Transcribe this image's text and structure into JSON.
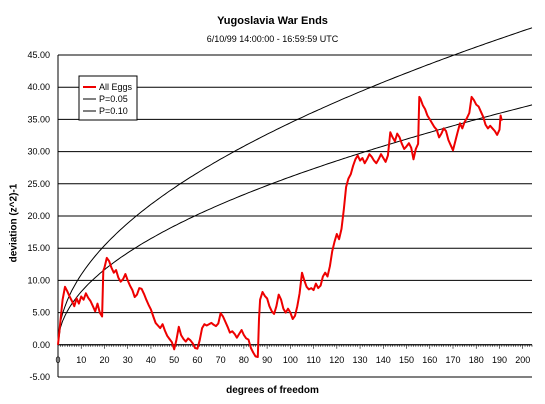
{
  "chart_data": {
    "type": "line",
    "title": "Yugoslavia War Ends",
    "subtitle": "6/10/99 14:00:00 - 16:59:59 UTC",
    "xlabel": "degrees of freedom",
    "ylabel": "deviation (z^2)-1",
    "xlim": [
      0,
      204
    ],
    "ylim": [
      -5,
      45
    ],
    "x_ticks": [
      "0",
      "10",
      "20",
      "30",
      "40",
      "50",
      "60",
      "70",
      "80",
      "90",
      "100",
      "110",
      "120",
      "130",
      "140",
      "150",
      "160",
      "170",
      "180",
      "190",
      "200"
    ],
    "y_ticks": [
      "-5.00",
      "0.00",
      "5.00",
      "10.00",
      "15.00",
      "20.00",
      "25.00",
      "30.00",
      "35.00",
      "40.00",
      "45.00"
    ],
    "grid": "horizontal",
    "legend_position": "top-left",
    "series": [
      {
        "name": "All Eggs",
        "color": "#ee0000",
        "points": [
          [
            0,
            0.0
          ],
          [
            1,
            3.5
          ],
          [
            2,
            7.0
          ],
          [
            3,
            9.0
          ],
          [
            4,
            8.3
          ],
          [
            5,
            7.5
          ],
          [
            6,
            6.8
          ],
          [
            7,
            6.0
          ],
          [
            8,
            7.2
          ],
          [
            9,
            6.4
          ],
          [
            10,
            7.5
          ],
          [
            11,
            7.0
          ],
          [
            12,
            8.0
          ],
          [
            13,
            7.3
          ],
          [
            14,
            6.8
          ],
          [
            15,
            6.0
          ],
          [
            16,
            5.2
          ],
          [
            17,
            6.4
          ],
          [
            18,
            5.0
          ],
          [
            19,
            4.4
          ],
          [
            19.5,
            11.5
          ],
          [
            20,
            12.0
          ],
          [
            21,
            13.5
          ],
          [
            22,
            13.0
          ],
          [
            23,
            12.0
          ],
          [
            24,
            11.2
          ],
          [
            25,
            11.6
          ],
          [
            26,
            10.4
          ],
          [
            27,
            9.8
          ],
          [
            28,
            10.2
          ],
          [
            29,
            11.0
          ],
          [
            30,
            10.0
          ],
          [
            31,
            9.2
          ],
          [
            32,
            8.5
          ],
          [
            33,
            7.4
          ],
          [
            34,
            7.8
          ],
          [
            35,
            8.8
          ],
          [
            36,
            8.7
          ],
          [
            37,
            7.9
          ],
          [
            38,
            7.0
          ],
          [
            39,
            6.2
          ],
          [
            40,
            5.5
          ],
          [
            41,
            4.4
          ],
          [
            42,
            3.4
          ],
          [
            43,
            3.0
          ],
          [
            44,
            2.6
          ],
          [
            45,
            3.2
          ],
          [
            46,
            2.2
          ],
          [
            47,
            1.4
          ],
          [
            48,
            0.9
          ],
          [
            49,
            0.4
          ],
          [
            50,
            -0.7
          ],
          [
            51,
            0.8
          ],
          [
            52,
            2.8
          ],
          [
            53,
            1.5
          ],
          [
            54,
            0.9
          ],
          [
            55,
            0.5
          ],
          [
            56,
            1.0
          ],
          [
            57,
            0.7
          ],
          [
            58,
            0.2
          ],
          [
            59,
            -0.5
          ],
          [
            60,
            -0.6
          ],
          [
            61,
            0.7
          ],
          [
            62,
            2.6
          ],
          [
            63,
            3.2
          ],
          [
            64,
            3.0
          ],
          [
            65,
            3.2
          ],
          [
            66,
            3.4
          ],
          [
            67,
            3.1
          ],
          [
            68,
            2.9
          ],
          [
            69,
            3.3
          ],
          [
            70,
            4.9
          ],
          [
            71,
            4.4
          ],
          [
            72,
            3.6
          ],
          [
            73,
            2.8
          ],
          [
            74,
            1.9
          ],
          [
            75,
            2.1
          ],
          [
            76,
            1.7
          ],
          [
            77,
            1.1
          ],
          [
            78,
            1.7
          ],
          [
            79,
            2.3
          ],
          [
            80,
            1.5
          ],
          [
            81,
            1.0
          ],
          [
            82,
            0.8
          ],
          [
            83,
            -0.5
          ],
          [
            84,
            -1.2
          ],
          [
            85,
            -1.8
          ],
          [
            86,
            -1.9
          ],
          [
            86.5,
            4.0
          ],
          [
            87,
            7.0
          ],
          [
            88,
            8.2
          ],
          [
            89,
            7.6
          ],
          [
            90,
            7.2
          ],
          [
            91,
            6.0
          ],
          [
            92,
            5.2
          ],
          [
            93,
            4.8
          ],
          [
            94,
            6.0
          ],
          [
            95,
            7.8
          ],
          [
            96,
            7.0
          ],
          [
            97,
            5.6
          ],
          [
            98,
            5.0
          ],
          [
            99,
            5.6
          ],
          [
            100,
            5.0
          ],
          [
            101,
            4.0
          ],
          [
            102,
            4.5
          ],
          [
            103,
            6.0
          ],
          [
            104,
            8.0
          ],
          [
            105,
            11.2
          ],
          [
            106,
            10.0
          ],
          [
            107,
            9.0
          ],
          [
            108,
            8.6
          ],
          [
            109,
            8.8
          ],
          [
            110,
            8.5
          ],
          [
            111,
            9.5
          ],
          [
            112,
            8.8
          ],
          [
            113,
            9.2
          ],
          [
            114,
            10.6
          ],
          [
            115,
            11.2
          ],
          [
            116,
            10.6
          ],
          [
            117,
            12.2
          ],
          [
            118,
            14.5
          ],
          [
            119,
            16.0
          ],
          [
            120,
            17.2
          ],
          [
            121,
            16.4
          ],
          [
            122,
            18.0
          ],
          [
            123,
            21.0
          ],
          [
            124,
            24.5
          ],
          [
            125,
            25.8
          ],
          [
            126,
            26.5
          ],
          [
            127,
            27.8
          ],
          [
            128,
            28.8
          ],
          [
            129,
            29.4
          ],
          [
            130,
            28.6
          ],
          [
            131,
            29.0
          ],
          [
            132,
            28.2
          ],
          [
            133,
            28.8
          ],
          [
            134,
            29.6
          ],
          [
            135,
            29.2
          ],
          [
            136,
            28.6
          ],
          [
            137,
            28.2
          ],
          [
            138,
            28.8
          ],
          [
            139,
            29.6
          ],
          [
            140,
            29.0
          ],
          [
            141,
            28.4
          ],
          [
            142,
            29.4
          ],
          [
            143,
            33.0
          ],
          [
            144,
            32.2
          ],
          [
            145,
            31.6
          ],
          [
            146,
            32.8
          ],
          [
            147,
            32.2
          ],
          [
            148,
            31.2
          ],
          [
            149,
            30.4
          ],
          [
            150,
            30.8
          ],
          [
            151,
            31.3
          ],
          [
            152,
            30.6
          ],
          [
            153,
            28.8
          ],
          [
            154,
            30.4
          ],
          [
            155,
            31.2
          ],
          [
            155.5,
            38.5
          ],
          [
            156,
            38.2
          ],
          [
            157,
            37.2
          ],
          [
            158,
            36.6
          ],
          [
            159,
            35.6
          ],
          [
            160,
            35.0
          ],
          [
            161,
            34.4
          ],
          [
            162,
            33.8
          ],
          [
            163,
            33.4
          ],
          [
            164,
            32.2
          ],
          [
            165,
            32.8
          ],
          [
            166,
            33.6
          ],
          [
            167,
            33.2
          ],
          [
            168,
            31.8
          ],
          [
            169,
            31.0
          ],
          [
            170,
            30.2
          ],
          [
            171,
            31.6
          ],
          [
            172,
            33.0
          ],
          [
            173,
            34.4
          ],
          [
            174,
            33.6
          ],
          [
            175,
            34.6
          ],
          [
            176,
            35.2
          ],
          [
            177,
            36.0
          ],
          [
            178,
            38.5
          ],
          [
            179,
            38.0
          ],
          [
            180,
            37.3
          ],
          [
            181,
            37.0
          ],
          [
            182,
            36.2
          ],
          [
            183,
            35.4
          ],
          [
            184,
            34.2
          ],
          [
            185,
            33.6
          ],
          [
            186,
            34.0
          ],
          [
            187,
            33.6
          ],
          [
            188,
            33.2
          ],
          [
            189,
            32.6
          ],
          [
            190,
            33.4
          ],
          [
            190.5,
            35.6
          ],
          [
            191,
            34.8
          ]
        ]
      },
      {
        "name": "P=0.05",
        "color": "#000000",
        "formula_factor": 2.437
      },
      {
        "name": "P=0.10",
        "color": "#000000",
        "formula_factor": 1.844
      }
    ]
  }
}
